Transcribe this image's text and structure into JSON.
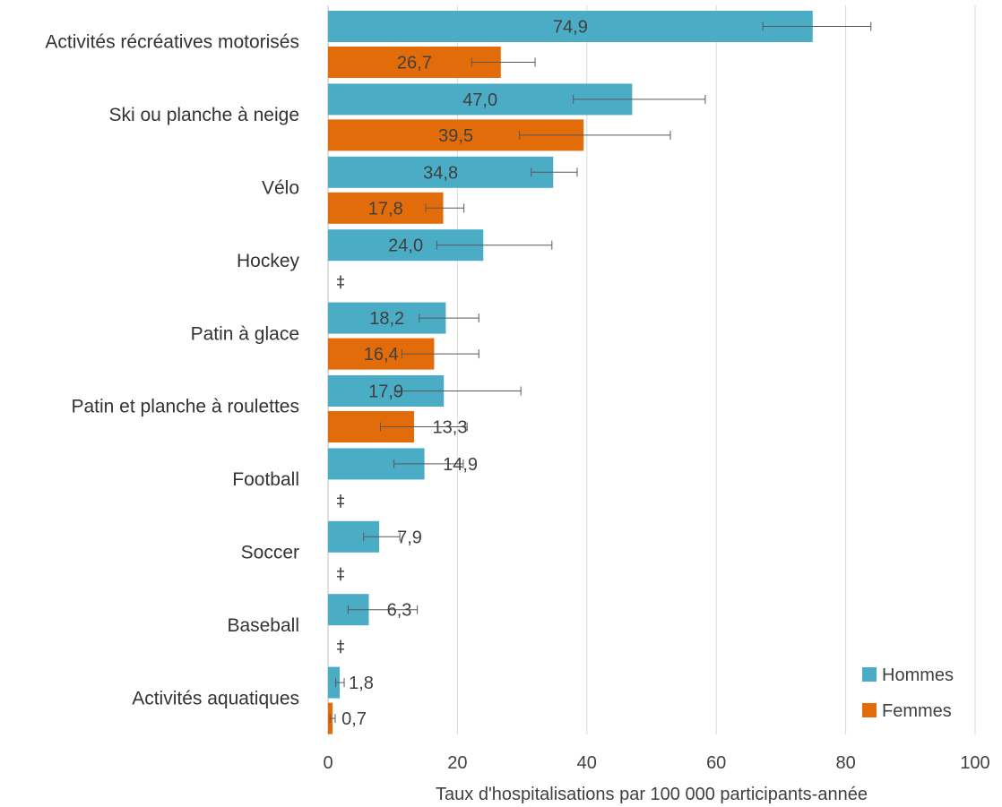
{
  "chart_data": {
    "type": "bar",
    "orientation": "horizontal",
    "categories": [
      "Activités récréatives motorisés",
      "Ski ou planche à neige",
      "Vélo",
      "Hockey",
      "Patin à glace",
      "Patin et planche à roulettes",
      "Football",
      "Soccer",
      "Baseball",
      "Activités aquatiques"
    ],
    "series": [
      {
        "name": "Hommes",
        "color": "#4BACC6",
        "values": [
          74.9,
          47.0,
          34.8,
          24.0,
          18.2,
          17.9,
          14.9,
          7.9,
          6.3,
          1.8
        ],
        "labels": [
          "74,9",
          "47,0",
          "34,8",
          "24,0",
          "18,2",
          "17,9",
          "14,9",
          "7,9",
          "6,3",
          "1,8"
        ],
        "error_low": [
          67.2,
          37.9,
          31.4,
          16.8,
          14.1,
          10.3,
          10.2,
          5.5,
          3.1,
          1.2
        ],
        "error_high": [
          83.9,
          58.3,
          38.5,
          34.6,
          23.3,
          29.8,
          20.9,
          11.1,
          13.8,
          2.5
        ]
      },
      {
        "name": "Femmes",
        "color": "#E36C0A",
        "values": [
          26.7,
          39.5,
          17.8,
          null,
          16.4,
          13.3,
          null,
          null,
          null,
          0.7
        ],
        "labels": [
          "26,7",
          "39,5",
          "17,8",
          "‡",
          "16,4",
          "13,3",
          "‡",
          "‡",
          "‡",
          "0,7"
        ],
        "error_low": [
          22.2,
          29.6,
          15.1,
          null,
          11.4,
          8.1,
          null,
          null,
          null,
          0.3
        ],
        "error_high": [
          32.0,
          52.9,
          21.0,
          null,
          23.3,
          21.5,
          null,
          null,
          null,
          1.1
        ]
      }
    ],
    "xlim": [
      0,
      100
    ],
    "xticks": [
      0,
      20,
      40,
      60,
      80,
      100
    ],
    "xlabel": "Taux d'hospitalisations par 100 000 participants-année",
    "ylabel": "",
    "title": "",
    "grid": true,
    "legend_position": "bottom-right"
  }
}
